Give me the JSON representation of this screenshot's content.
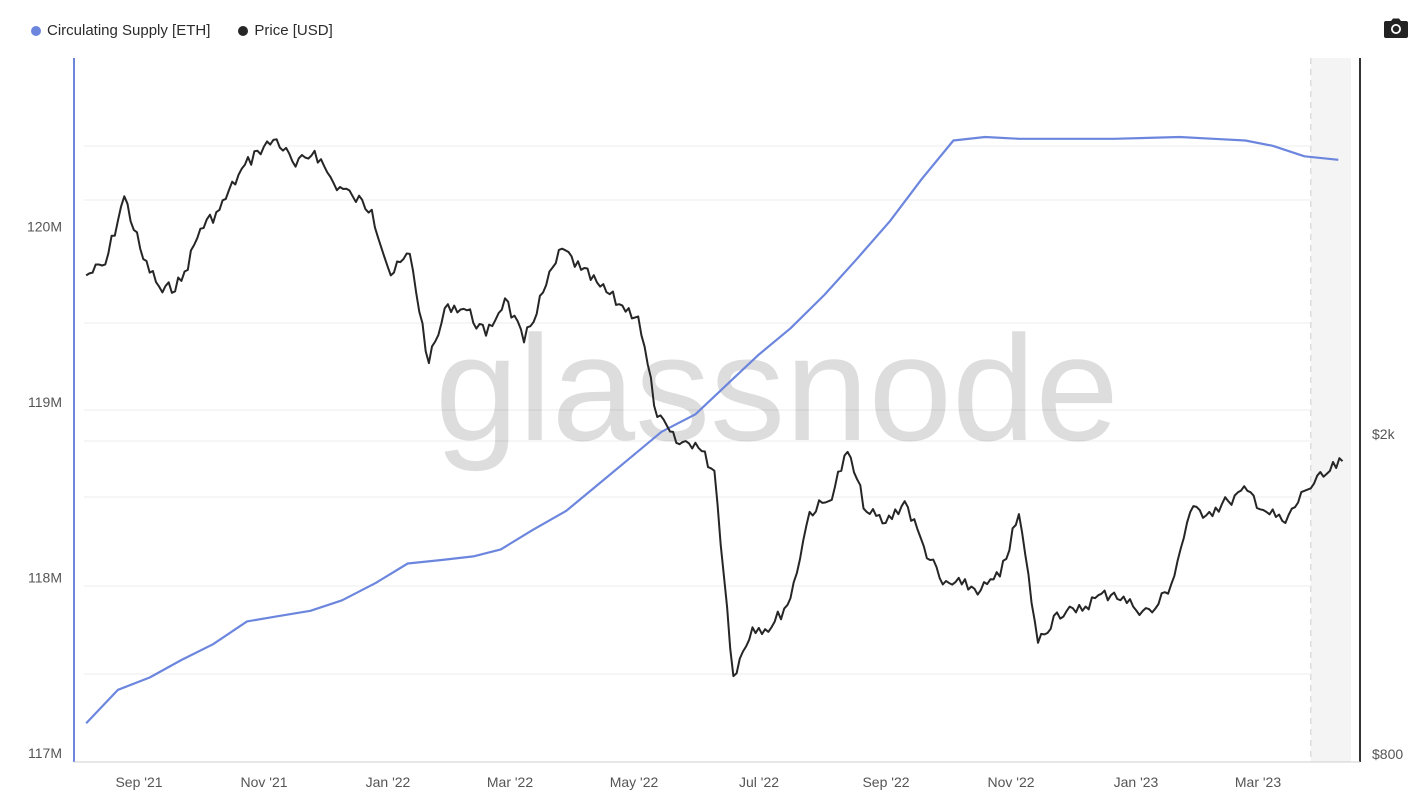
{
  "legend": {
    "supply": "Circulating Supply [ETH]",
    "price": "Price [USD]"
  },
  "watermark": "glassnode",
  "colors": {
    "supply": "#6c86de",
    "price": "#262626",
    "grid": "#ececec",
    "forecast": "#f4f4f4"
  },
  "icons": {
    "camera": "camera-icon"
  },
  "chart_data": {
    "type": "line",
    "x_axis": {
      "ticks": [
        "Sep '21",
        "Nov '21",
        "Jan '22",
        "Mar '22",
        "May '22",
        "Jul '22",
        "Sep '22",
        "Nov '22",
        "Jan '23",
        "Mar '23"
      ],
      "start": "Aug '21",
      "end": "Apr '23"
    },
    "y_left": {
      "ticks": [
        "117M",
        "118M",
        "119M",
        "120M"
      ],
      "range": [
        117000000,
        120950000
      ]
    },
    "y_right": {
      "ticks": [
        "$800",
        "$2k"
      ],
      "scale": "log"
    },
    "series": [
      {
        "name": "Circulating Supply [ETH]",
        "axis": "left",
        "x": [
          "2021-08-16",
          "2021-08-31",
          "2021-09-15",
          "2021-09-30",
          "2021-10-15",
          "2021-10-31",
          "2021-11-15",
          "2021-11-30",
          "2021-12-15",
          "2021-12-31",
          "2022-01-15",
          "2022-01-31",
          "2022-02-15",
          "2022-02-28",
          "2022-03-15",
          "2022-03-31",
          "2022-04-15",
          "2022-04-30",
          "2022-05-15",
          "2022-05-31",
          "2022-06-15",
          "2022-06-30",
          "2022-07-15",
          "2022-07-31",
          "2022-08-15",
          "2022-08-31",
          "2022-09-15",
          "2022-09-30",
          "2022-10-15",
          "2022-10-31",
          "2022-11-15",
          "2022-11-30",
          "2022-12-15",
          "2022-12-31",
          "2023-01-15",
          "2023-01-31",
          "2023-02-15",
          "2023-02-28",
          "2023-03-15",
          "2023-03-31"
        ],
        "values": [
          117170000,
          117360000,
          117430000,
          117530000,
          117620000,
          117750000,
          117780000,
          117810000,
          117870000,
          117970000,
          118080000,
          118100000,
          118120000,
          118160000,
          118270000,
          118380000,
          118530000,
          118680000,
          118830000,
          118930000,
          119100000,
          119270000,
          119420000,
          119610000,
          119810000,
          120030000,
          120270000,
          120490000,
          120510000,
          120500000,
          120500000,
          120500000,
          120500000,
          120505000,
          120510000,
          120500000,
          120490000,
          120460000,
          120400000,
          120380000
        ]
      },
      {
        "name": "Price [USD]",
        "axis": "right",
        "x": [
          "2021-08-16",
          "2021-08-25",
          "2021-09-03",
          "2021-09-12",
          "2021-09-21",
          "2021-09-30",
          "2021-10-09",
          "2021-10-18",
          "2021-10-27",
          "2021-11-05",
          "2021-11-14",
          "2021-11-23",
          "2021-12-02",
          "2021-12-11",
          "2021-12-20",
          "2021-12-29",
          "2022-01-07",
          "2022-01-16",
          "2022-01-25",
          "2022-02-03",
          "2022-02-12",
          "2022-02-21",
          "2022-03-02",
          "2022-03-11",
          "2022-03-20",
          "2022-03-29",
          "2022-04-07",
          "2022-04-16",
          "2022-04-25",
          "2022-05-04",
          "2022-05-13",
          "2022-05-22",
          "2022-05-31",
          "2022-06-09",
          "2022-06-18",
          "2022-06-27",
          "2022-07-06",
          "2022-07-15",
          "2022-07-24",
          "2022-08-02",
          "2022-08-11",
          "2022-08-20",
          "2022-08-29",
          "2022-09-07",
          "2022-09-16",
          "2022-09-25",
          "2022-10-04",
          "2022-10-13",
          "2022-10-22",
          "2022-10-31",
          "2022-11-09",
          "2022-11-18",
          "2022-11-27",
          "2022-12-06",
          "2022-12-15",
          "2022-12-24",
          "2023-01-02",
          "2023-01-11",
          "2023-01-20",
          "2023-01-29",
          "2023-02-07",
          "2023-02-16",
          "2023-02-25",
          "2023-03-06",
          "2023-03-15",
          "2023-03-24",
          "2023-04-02"
        ],
        "values": [
          3150,
          3250,
          3950,
          3300,
          3000,
          3100,
          3600,
          3800,
          4200,
          4500,
          4650,
          4300,
          4500,
          4100,
          3950,
          3800,
          3150,
          3350,
          2450,
          2900,
          2850,
          2650,
          2950,
          2600,
          3000,
          3400,
          3200,
          3050,
          2900,
          2800,
          2100,
          1950,
          1950,
          1800,
          1000,
          1150,
          1150,
          1250,
          1600,
          1650,
          1900,
          1600,
          1550,
          1650,
          1450,
          1300,
          1300,
          1280,
          1330,
          1590,
          1100,
          1200,
          1200,
          1250,
          1270,
          1220,
          1200,
          1300,
          1600,
          1600,
          1650,
          1700,
          1600,
          1550,
          1700,
          1770,
          1850
        ]
      }
    ],
    "grid": true,
    "legend_position": "top-left"
  }
}
